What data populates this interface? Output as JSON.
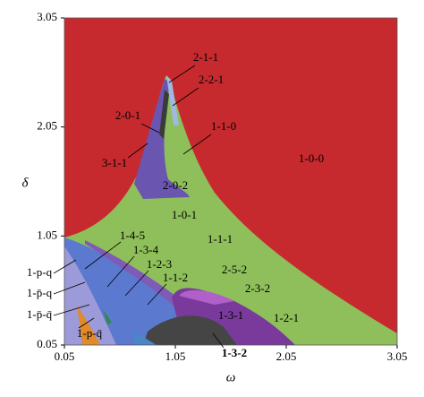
{
  "chart_data": {
    "type": "region-map",
    "xlabel": "ω",
    "ylabel": "δ",
    "xlim": [
      0.05,
      3.05
    ],
    "ylim": [
      0.05,
      3.05
    ],
    "xticks": [
      0.05,
      1.05,
      2.05,
      3.05
    ],
    "yticks": [
      0.05,
      1.05,
      2.05,
      3.05
    ],
    "region_labels": [
      "2-1-1",
      "2-2-1",
      "2-0-1",
      "1-1-0",
      "3-1-1",
      "2-0-2",
      "1-0-0",
      "1-0-1",
      "1-4-5",
      "1-3-4",
      "1-1-1",
      "1-2-3",
      "2-5-2",
      "1-1-2",
      "2-3-2",
      "1-3-1",
      "1-2-1",
      "1-3-2",
      "1-p-q",
      "1-p̄-q",
      "1-p̄-q̄",
      "1-p-q̄"
    ]
  }
}
